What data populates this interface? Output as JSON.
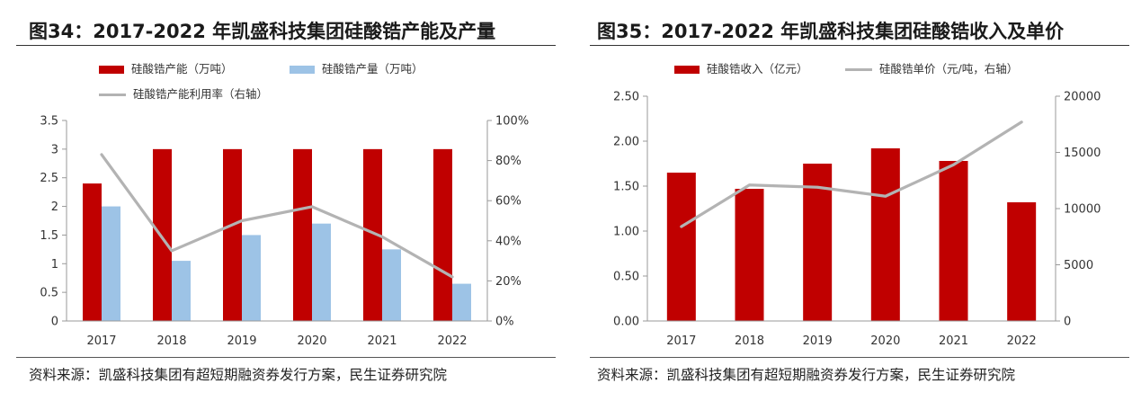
{
  "left": {
    "title": "图34：2017-2022 年凯盛科技集团硅酸锆产能及产量",
    "source": "资料来源：凯盛科技集团有超短期融资券发行方案，民生证券研究院",
    "legend": {
      "capacity": "硅酸锆产能（万吨）",
      "output": "硅酸锆产量（万吨）",
      "utilization": "硅酸锆产能利用率（右轴）"
    }
  },
  "right": {
    "title": "图35：2017-2022 年凯盛科技集团硅酸锆收入及单价",
    "source": "资料来源：凯盛科技集团有超短期融资券发行方案，民生证券研究院",
    "legend": {
      "revenue": "硅酸锆收入（亿元）",
      "price": "硅酸锆单价（元/吨，右轴）"
    }
  },
  "colors": {
    "red": "#c00000",
    "blue": "#9dc3e6",
    "gray": "#b3b3b3"
  },
  "chart_data": [
    {
      "type": "bar",
      "title": "图34：2017-2022 年凯盛科技集团硅酸锆产能及产量",
      "categories": [
        "2017",
        "2018",
        "2019",
        "2020",
        "2021",
        "2022"
      ],
      "series": [
        {
          "name": "硅酸锆产能（万吨）",
          "type": "bar",
          "axis": "left",
          "color": "#c00000",
          "values": [
            2.4,
            3,
            3,
            3,
            3,
            3
          ]
        },
        {
          "name": "硅酸锆产量（万吨）",
          "type": "bar",
          "axis": "left",
          "color": "#9dc3e6",
          "values": [
            2.0,
            1.05,
            1.5,
            1.7,
            1.25,
            0.65
          ]
        },
        {
          "name": "硅酸锆产能利用率（右轴）",
          "type": "line",
          "axis": "right",
          "color": "#b3b3b3",
          "values": [
            83,
            35,
            50,
            57,
            42,
            22
          ]
        }
      ],
      "ylim": [
        0,
        3.5
      ],
      "yticks": [
        "0",
        "0.5",
        "1",
        "1.5",
        "2",
        "2.5",
        "3",
        "3.5"
      ],
      "y2lim": [
        0,
        100
      ],
      "y2ticks": [
        "0%",
        "20%",
        "40%",
        "60%",
        "80%",
        "100%"
      ],
      "grid": false,
      "legend_position": "top-left"
    },
    {
      "type": "bar",
      "title": "图35：2017-2022 年凯盛科技集团硅酸锆收入及单价",
      "categories": [
        "2017",
        "2018",
        "2019",
        "2020",
        "2021",
        "2022"
      ],
      "series": [
        {
          "name": "硅酸锆收入（亿元）",
          "type": "bar",
          "axis": "left",
          "color": "#c00000",
          "values": [
            1.65,
            1.47,
            1.75,
            1.92,
            1.78,
            1.32
          ]
        },
        {
          "name": "硅酸锆单价（元/吨，右轴）",
          "type": "line",
          "axis": "right",
          "color": "#b3b3b3",
          "values": [
            8400,
            12100,
            11900,
            11100,
            13900,
            17700
          ]
        }
      ],
      "ylim": [
        0,
        2.5
      ],
      "yticks": [
        "0.00",
        "0.50",
        "1.00",
        "1.50",
        "2.00",
        "2.50"
      ],
      "y2lim": [
        0,
        20000
      ],
      "y2ticks": [
        "0",
        "5000",
        "10000",
        "15000",
        "20000"
      ],
      "grid": false,
      "legend_position": "top-left"
    }
  ]
}
